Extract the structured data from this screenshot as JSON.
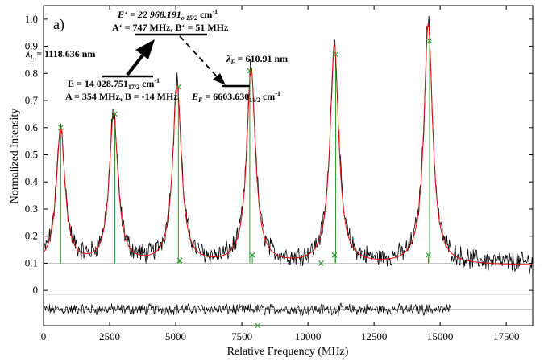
{
  "chart_data": {
    "type": "line",
    "panel_label": "a)",
    "xlabel": "Relative Frequency (MHz)",
    "ylabel": "Normalized Intensity",
    "xlim": [
      0,
      18500
    ],
    "ylim": [
      -0.13,
      1.05
    ],
    "x_ticks": [
      0,
      2500,
      5000,
      7500,
      10000,
      12500,
      15000,
      17500
    ],
    "x_tick_labels": [
      "0",
      "2500",
      "5000",
      "7500",
      "10000",
      "12500",
      "15000",
      "17500"
    ],
    "y_ticks": [
      0,
      0.1,
      0.2,
      0.3,
      0.4,
      0.5,
      0.6,
      0.7,
      0.8,
      0.9,
      1.0
    ],
    "y_tick_labels": [
      "0",
      "0.1",
      "0.2",
      "0.3",
      "0.4",
      "0.5",
      "0.6",
      "0.7",
      "0.8",
      "0.9",
      "1.0"
    ],
    "baseline": 0.1,
    "peaks": [
      {
        "x": 650,
        "y": 0.6
      },
      {
        "x": 2650,
        "y": 0.65
      },
      {
        "x": 5050,
        "y": 0.76
      },
      {
        "x": 7850,
        "y": 0.82
      },
      {
        "x": 11000,
        "y": 0.91
      },
      {
        "x": 14550,
        "y": 0.99
      }
    ],
    "hyperfine_components": [
      {
        "x": 650,
        "y": 0.6
      },
      {
        "x": 2700,
        "y": 0.65
      },
      {
        "x": 5100,
        "y": 0.75
      },
      {
        "x": 5150,
        "y": 0.11
      },
      {
        "x": 7800,
        "y": 0.81
      },
      {
        "x": 7900,
        "y": 0.13
      },
      {
        "x": 10500,
        "y": 0.1
      },
      {
        "x": 11050,
        "y": 0.87
      },
      {
        "x": 11000,
        "y": 0.13
      },
      {
        "x": 14600,
        "y": 0.92
      },
      {
        "x": 14550,
        "y": 0.13
      },
      {
        "x": 8100,
        "y": -0.13
      }
    ],
    "residual_offset": -0.07,
    "colors": {
      "data": "#000000",
      "fit": "#e01010",
      "components": "#2a9a2a",
      "residual_line": "#999999"
    },
    "level_scheme": {
      "upper": {
        "energy_label": "E‘ = 22 968.191",
        "energy_sub": "o 15/2",
        "energy_unit": " cm",
        "energy_sup": "-1",
        "constants": "A‘ = 747 MHz, B‘ = 51 MHz"
      },
      "lower": {
        "energy_label": "E = 14 028.751",
        "energy_sub": "17/2",
        "energy_unit": " cm",
        "energy_sup": "-1",
        "constants": "A = 354 MHz, B = -14 MHz"
      },
      "final": {
        "energy_label": "E",
        "energy_label_sub": "F",
        "energy_value": " = 6603.630",
        "energy_sub": "11/2",
        "energy_unit": " cm",
        "energy_sup": "-1"
      },
      "laser": {
        "symbol": "λ",
        "sub": "L",
        "value": " = 1118.636 nm"
      },
      "fluorescence": {
        "symbol": "λ",
        "sub": "F",
        "value": " = 610.91 nm"
      }
    }
  }
}
